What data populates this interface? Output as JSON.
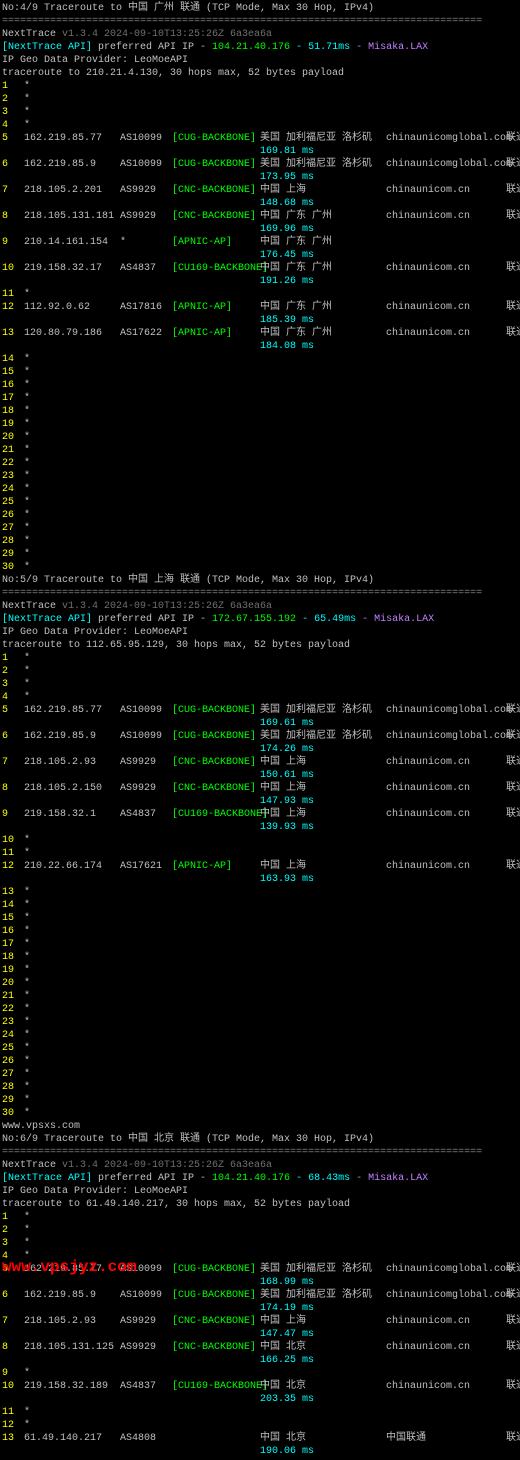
{
  "traces": [
    {
      "title": "No:4/9 Traceroute to 中国 广州 联通 (TCP Mode, Max 30 Hop, IPv4)",
      "divider": "================================================================================",
      "tool": "NextTrace",
      "version": "v1.3.4 2024-09-10T13:25:26Z 6a3ea6a",
      "api_label": "[NextTrace API]",
      "api_text": " preferred API IP - ",
      "api_ip": "104.21.40.176",
      "api_ms": " - 51.71ms",
      "api_loc": " - Misaka.LAX",
      "geo": "IP Geo Data Provider: LeoMoeAPI",
      "cmd": "traceroute to 210.21.4.130, 30 hops max, 52 bytes payload",
      "hops": [
        {
          "n": "1",
          "star": true
        },
        {
          "n": "2",
          "star": true
        },
        {
          "n": "3",
          "star": true
        },
        {
          "n": "4",
          "star": true
        },
        {
          "n": "5",
          "ip": "162.219.85.77",
          "asn": "AS10099",
          "bb": "[CUG-BACKBONE]",
          "loc": "美国 加利福尼亚 洛杉矶",
          "dom": "chinaunicomglobal.com",
          "isp": "联通",
          "ms": "169.81 ms"
        },
        {
          "n": "6",
          "ip": "162.219.85.9",
          "asn": "AS10099",
          "bb": "[CUG-BACKBONE]",
          "loc": "美国 加利福尼亚 洛杉矶",
          "dom": "chinaunicomglobal.com",
          "isp": "联通",
          "ms": "173.95 ms"
        },
        {
          "n": "7",
          "ip": "218.105.2.201",
          "asn": "AS9929",
          "bb": "[CNC-BACKBONE]",
          "loc": "中国 上海",
          "dom": "chinaunicom.cn",
          "isp": "联通 CUII",
          "ms": "148.68 ms"
        },
        {
          "n": "8",
          "ip": "218.105.131.181",
          "asn": "AS9929",
          "bb": "[CNC-BACKBONE]",
          "loc": "中国 广东 广州",
          "dom": "chinaunicom.cn",
          "isp": "联通 CUII",
          "ms": "169.96 ms"
        },
        {
          "n": "9",
          "ip": "210.14.161.154",
          "asn": "*",
          "bb": "[APNIC-AP]",
          "loc": "中国 广东 广州",
          "dom": "",
          "isp": "",
          "ms": "176.45 ms"
        },
        {
          "n": "10",
          "ip": "219.158.32.17",
          "asn": "AS4837",
          "bb": "[CU169-BACKBONE]",
          "loc": "中国 广东 广州",
          "dom": "chinaunicom.cn",
          "isp": "联通",
          "ms": "191.26 ms"
        },
        {
          "n": "11",
          "star": true
        },
        {
          "n": "12",
          "ip": "112.92.0.62",
          "asn": "AS17816",
          "bb": "[APNIC-AP]",
          "loc": "中国 广东 广州",
          "dom": "chinaunicom.cn",
          "isp": "联通",
          "ms": "185.39 ms"
        },
        {
          "n": "13",
          "ip": "120.80.79.186",
          "asn": "AS17622",
          "bb": "[APNIC-AP]",
          "loc": "中国 广东 广州",
          "dom": "chinaunicom.cn",
          "isp": "联通",
          "ms": "184.08 ms"
        },
        {
          "n": "14",
          "star": true
        },
        {
          "n": "15",
          "star": true
        },
        {
          "n": "16",
          "star": true
        },
        {
          "n": "17",
          "star": true
        },
        {
          "n": "18",
          "star": true
        },
        {
          "n": "19",
          "star": true
        },
        {
          "n": "20",
          "star": true
        },
        {
          "n": "21",
          "star": true
        },
        {
          "n": "22",
          "star": true
        },
        {
          "n": "23",
          "star": true
        },
        {
          "n": "24",
          "star": true
        },
        {
          "n": "25",
          "star": true
        },
        {
          "n": "26",
          "star": true
        },
        {
          "n": "27",
          "star": true
        },
        {
          "n": "28",
          "star": true
        },
        {
          "n": "29",
          "star": true
        },
        {
          "n": "30",
          "star": true
        }
      ]
    },
    {
      "title": "No:5/9 Traceroute to 中国 上海 联通 (TCP Mode, Max 30 Hop, IPv4)",
      "divider": "================================================================================",
      "tool": "NextTrace",
      "version": "v1.3.4 2024-09-10T13:25:26Z 6a3ea6a",
      "api_label": "[NextTrace API]",
      "api_text": " preferred API IP - ",
      "api_ip": "172.67.155.192",
      "api_ms": " - 65.49ms",
      "api_loc": " - Misaka.LAX",
      "geo": "IP Geo Data Provider: LeoMoeAPI",
      "cmd": "traceroute to 112.65.95.129, 30 hops max, 52 bytes payload",
      "hops": [
        {
          "n": "1",
          "star": true
        },
        {
          "n": "2",
          "star": true
        },
        {
          "n": "3",
          "star": true
        },
        {
          "n": "4",
          "star": true
        },
        {
          "n": "5",
          "ip": "162.219.85.77",
          "asn": "AS10099",
          "bb": "[CUG-BACKBONE]",
          "loc": "美国 加利福尼亚 洛杉矶",
          "dom": "chinaunicomglobal.com",
          "isp": "联通",
          "ms": "169.61 ms"
        },
        {
          "n": "6",
          "ip": "162.219.85.9",
          "asn": "AS10099",
          "bb": "[CUG-BACKBONE]",
          "loc": "美国 加利福尼亚 洛杉矶",
          "dom": "chinaunicomglobal.com",
          "isp": "联通",
          "ms": "174.26 ms"
        },
        {
          "n": "7",
          "ip": "218.105.2.93",
          "asn": "AS9929",
          "bb": "[CNC-BACKBONE]",
          "loc": "中国 上海",
          "dom": "chinaunicom.cn",
          "isp": "联通 CUII",
          "ms": "150.61 ms"
        },
        {
          "n": "8",
          "ip": "218.105.2.150",
          "asn": "AS9929",
          "bb": "[CNC-BACKBONE]",
          "loc": "中国 上海",
          "dom": "chinaunicom.cn",
          "isp": "联通 CUII",
          "ms": "147.93 ms"
        },
        {
          "n": "9",
          "ip": "219.158.32.1",
          "asn": "AS4837",
          "bb": "[CU169-BACKBONE]",
          "loc": "中国 上海",
          "dom": "chinaunicom.cn",
          "isp": "联通",
          "ms": "139.93 ms"
        },
        {
          "n": "10",
          "star": true
        },
        {
          "n": "11",
          "star": true
        },
        {
          "n": "12",
          "ip": "210.22.66.174",
          "asn": "AS17621",
          "bb": "[APNIC-AP]",
          "loc": "中国 上海",
          "dom": "chinaunicom.cn",
          "isp": "联通",
          "ms": "163.93 ms"
        },
        {
          "n": "13",
          "star": true
        },
        {
          "n": "14",
          "star": true
        },
        {
          "n": "15",
          "star": true
        },
        {
          "n": "16",
          "star": true
        },
        {
          "n": "17",
          "star": true
        },
        {
          "n": "18",
          "star": true
        },
        {
          "n": "19",
          "star": true
        },
        {
          "n": "20",
          "star": true
        },
        {
          "n": "21",
          "star": true
        },
        {
          "n": "22",
          "star": true
        },
        {
          "n": "23",
          "star": true
        },
        {
          "n": "24",
          "star": true
        },
        {
          "n": "25",
          "star": true
        },
        {
          "n": "26",
          "star": true
        },
        {
          "n": "27",
          "star": true
        },
        {
          "n": "28",
          "star": true
        },
        {
          "n": "29",
          "star": true
        },
        {
          "n": "30",
          "star": true
        }
      ],
      "watermark": "www.vpsxs.com"
    },
    {
      "title": "No:6/9 Traceroute to 中国 北京 联通 (TCP Mode, Max 30 Hop, IPv4)",
      "divider": "================================================================================",
      "tool": "NextTrace",
      "version": "v1.3.4 2024-09-10T13:25:26Z 6a3ea6a",
      "api_label": "[NextTrace API]",
      "api_text": " preferred API IP - ",
      "api_ip": "104.21.40.176",
      "api_ms": " - 68.43ms",
      "api_loc": " - Misaka.LAX",
      "geo": "IP Geo Data Provider: LeoMoeAPI",
      "cmd": "traceroute to 61.49.140.217, 30 hops max, 52 bytes payload",
      "hops": [
        {
          "n": "1",
          "star": true
        },
        {
          "n": "2",
          "star": true
        },
        {
          "n": "3",
          "star": true
        },
        {
          "n": "4",
          "star": true
        },
        {
          "n": "5",
          "ip": "162.219.85.77",
          "asn": "AS10099",
          "bb": "[CUG-BACKBONE]",
          "loc": "美国 加利福尼亚 洛杉矶",
          "dom": "chinaunicomglobal.com",
          "isp": "联通",
          "ms": "168.99 ms"
        },
        {
          "n": "6",
          "ip": "162.219.85.9",
          "asn": "AS10099",
          "bb": "[CUG-BACKBONE]",
          "loc": "美国 加利福尼亚 洛杉矶",
          "dom": "chinaunicomglobal.com",
          "isp": "联通",
          "ms": "174.19 ms"
        },
        {
          "n": "7",
          "ip": "218.105.2.93",
          "asn": "AS9929",
          "bb": "[CNC-BACKBONE]",
          "loc": "中国 上海",
          "dom": "chinaunicom.cn",
          "isp": "联通 CUII",
          "ms": "147.47 ms"
        },
        {
          "n": "8",
          "ip": "218.105.131.125",
          "asn": "AS9929",
          "bb": "[CNC-BACKBONE]",
          "loc": "中国 北京",
          "dom": "chinaunicom.cn",
          "isp": "联通 CUII",
          "ms": "166.25 ms"
        },
        {
          "n": "9",
          "star": true
        },
        {
          "n": "10",
          "ip": "219.158.32.189",
          "asn": "AS4837",
          "bb": "[CU169-BACKBONE]",
          "loc": "中国 北京",
          "dom": "chinaunicom.cn",
          "isp": "联通",
          "ms": "203.35 ms"
        },
        {
          "n": "11",
          "star": true
        },
        {
          "n": "12",
          "star": true
        },
        {
          "n": "13",
          "ip": "61.49.140.217",
          "asn": "AS4808",
          "bb": "",
          "loc": "中国 北京",
          "dom": "中国联通",
          "isp": "联通",
          "ms": "190.06 ms"
        }
      ]
    }
  ],
  "bottom_watermark": "www.vpsjyz.com"
}
